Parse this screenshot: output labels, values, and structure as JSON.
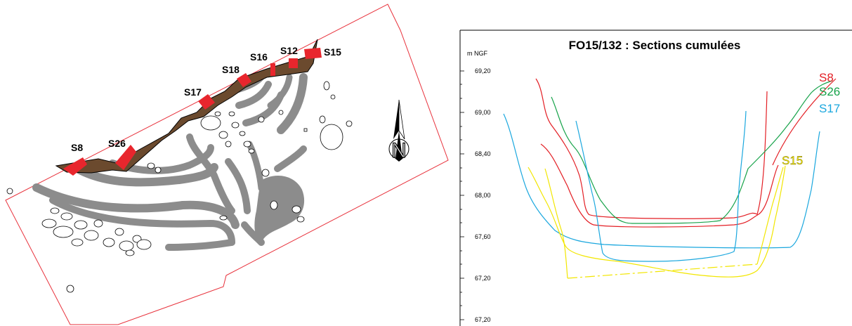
{
  "plan": {
    "labels": [
      "S8",
      "S26",
      "S17",
      "S18",
      "S16",
      "S12",
      "S15"
    ],
    "north_label": "N",
    "colors": {
      "boundary": "#e8323c",
      "ditch": "#6b4a2e",
      "trench": "#8c8c8c",
      "section": "#e8262d"
    }
  },
  "chart": {
    "title": "FO15/132 : Sections cumulées",
    "unit": "m NGF",
    "ticks": [
      "69,20",
      "69,00",
      "68,40",
      "68,00",
      "67,60",
      "67,20",
      "67,20"
    ],
    "series": [
      {
        "name": "S8",
        "color": "#e31e24"
      },
      {
        "name": "S26",
        "color": "#17a34a"
      },
      {
        "name": "S17",
        "color": "#1aa7de"
      },
      {
        "name": "S15",
        "color": "#f2e600"
      }
    ]
  }
}
